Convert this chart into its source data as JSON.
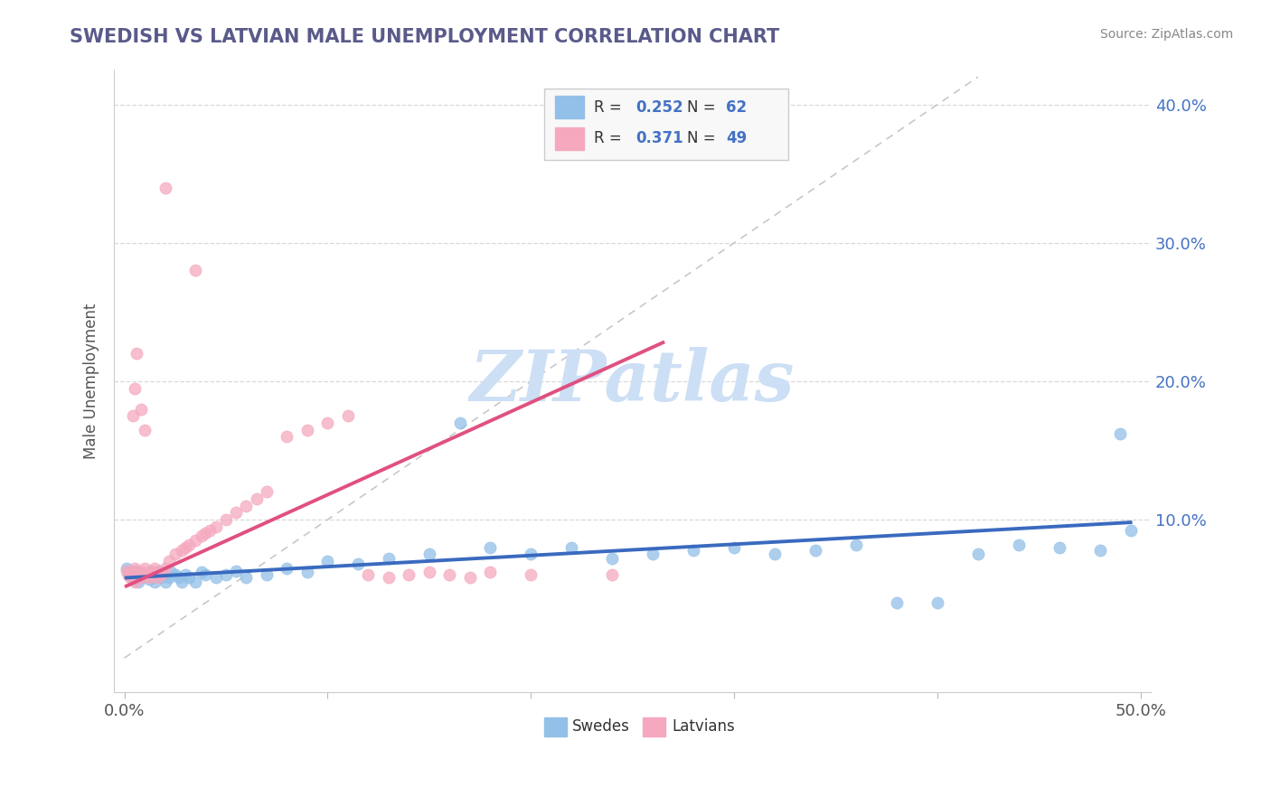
{
  "title": "SWEDISH VS LATVIAN MALE UNEMPLOYMENT CORRELATION CHART",
  "source": "Source: ZipAtlas.com",
  "ylabel": "Male Unemployment",
  "xlim": [
    -0.005,
    0.505
  ],
  "ylim": [
    -0.025,
    0.425
  ],
  "xticks": [
    0.0,
    0.1,
    0.2,
    0.3,
    0.4,
    0.5
  ],
  "xtick_labels": [
    "0.0%",
    "",
    "",
    "",
    "",
    "50.0%"
  ],
  "yticks": [
    0.1,
    0.2,
    0.3,
    0.4
  ],
  "ytick_labels": [
    "10.0%",
    "20.0%",
    "30.0%",
    "40.0%"
  ],
  "R_swedes": 0.252,
  "N_swedes": 62,
  "R_latvians": 0.371,
  "N_latvians": 49,
  "swedes_color": "#92c0e8",
  "latvians_color": "#f5a8be",
  "trend_swedes_color": "#3a6abf",
  "trend_latvians_color": "#e05080",
  "diag_line_color": "#c8c8c8",
  "title_color": "#5a5a8a",
  "watermark_color": "#ccdff5",
  "background_color": "#ffffff",
  "legend_box_color": "#eeeeee",
  "legend_edge_color": "#cccccc",
  "grid_color": "#d8d8d8",
  "axis_label_color": "#4472c4",
  "swedes_x": [
    0.001,
    0.002,
    0.003,
    0.004,
    0.005,
    0.005,
    0.006,
    0.007,
    0.007,
    0.008,
    0.009,
    0.01,
    0.011,
    0.012,
    0.013,
    0.014,
    0.015,
    0.016,
    0.017,
    0.018,
    0.019,
    0.02,
    0.022,
    0.023,
    0.025,
    0.027,
    0.028,
    0.03,
    0.032,
    0.035,
    0.038,
    0.04,
    0.045,
    0.05,
    0.055,
    0.06,
    0.07,
    0.08,
    0.09,
    0.1,
    0.115,
    0.13,
    0.15,
    0.165,
    0.18,
    0.2,
    0.22,
    0.24,
    0.26,
    0.28,
    0.3,
    0.32,
    0.34,
    0.36,
    0.38,
    0.4,
    0.42,
    0.44,
    0.46,
    0.48,
    0.49,
    0.495
  ],
  "swedes_y": [
    0.065,
    0.06,
    0.062,
    0.058,
    0.063,
    0.057,
    0.06,
    0.055,
    0.062,
    0.058,
    0.061,
    0.059,
    0.06,
    0.057,
    0.062,
    0.058,
    0.055,
    0.06,
    0.063,
    0.058,
    0.06,
    0.055,
    0.058,
    0.062,
    0.06,
    0.058,
    0.055,
    0.06,
    0.058,
    0.055,
    0.062,
    0.06,
    0.058,
    0.06,
    0.063,
    0.058,
    0.06,
    0.065,
    0.062,
    0.07,
    0.068,
    0.072,
    0.075,
    0.17,
    0.08,
    0.075,
    0.08,
    0.072,
    0.075,
    0.078,
    0.08,
    0.075,
    0.078,
    0.082,
    0.04,
    0.04,
    0.075,
    0.082,
    0.08,
    0.078,
    0.162,
    0.092
  ],
  "latvians_x": [
    0.001,
    0.002,
    0.003,
    0.003,
    0.004,
    0.005,
    0.005,
    0.006,
    0.007,
    0.008,
    0.009,
    0.01,
    0.011,
    0.012,
    0.013,
    0.014,
    0.015,
    0.016,
    0.017,
    0.018,
    0.02,
    0.022,
    0.025,
    0.028,
    0.03,
    0.032,
    0.035,
    0.038,
    0.04,
    0.042,
    0.045,
    0.05,
    0.055,
    0.06,
    0.065,
    0.07,
    0.08,
    0.09,
    0.1,
    0.11,
    0.12,
    0.13,
    0.14,
    0.15,
    0.16,
    0.17,
    0.18,
    0.2,
    0.24
  ],
  "latvians_y": [
    0.063,
    0.06,
    0.058,
    0.062,
    0.06,
    0.065,
    0.055,
    0.063,
    0.06,
    0.058,
    0.062,
    0.065,
    0.06,
    0.058,
    0.063,
    0.06,
    0.065,
    0.058,
    0.062,
    0.06,
    0.065,
    0.07,
    0.075,
    0.078,
    0.08,
    0.082,
    0.085,
    0.088,
    0.09,
    0.092,
    0.095,
    0.1,
    0.105,
    0.11,
    0.115,
    0.12,
    0.16,
    0.165,
    0.17,
    0.175,
    0.06,
    0.058,
    0.06,
    0.062,
    0.06,
    0.058,
    0.062,
    0.06,
    0.06
  ],
  "latvians_high_x": [
    0.02,
    0.035,
    0.004,
    0.005,
    0.006,
    0.008,
    0.01
  ],
  "latvians_high_y": [
    0.34,
    0.28,
    0.175,
    0.195,
    0.22,
    0.18,
    0.165
  ]
}
